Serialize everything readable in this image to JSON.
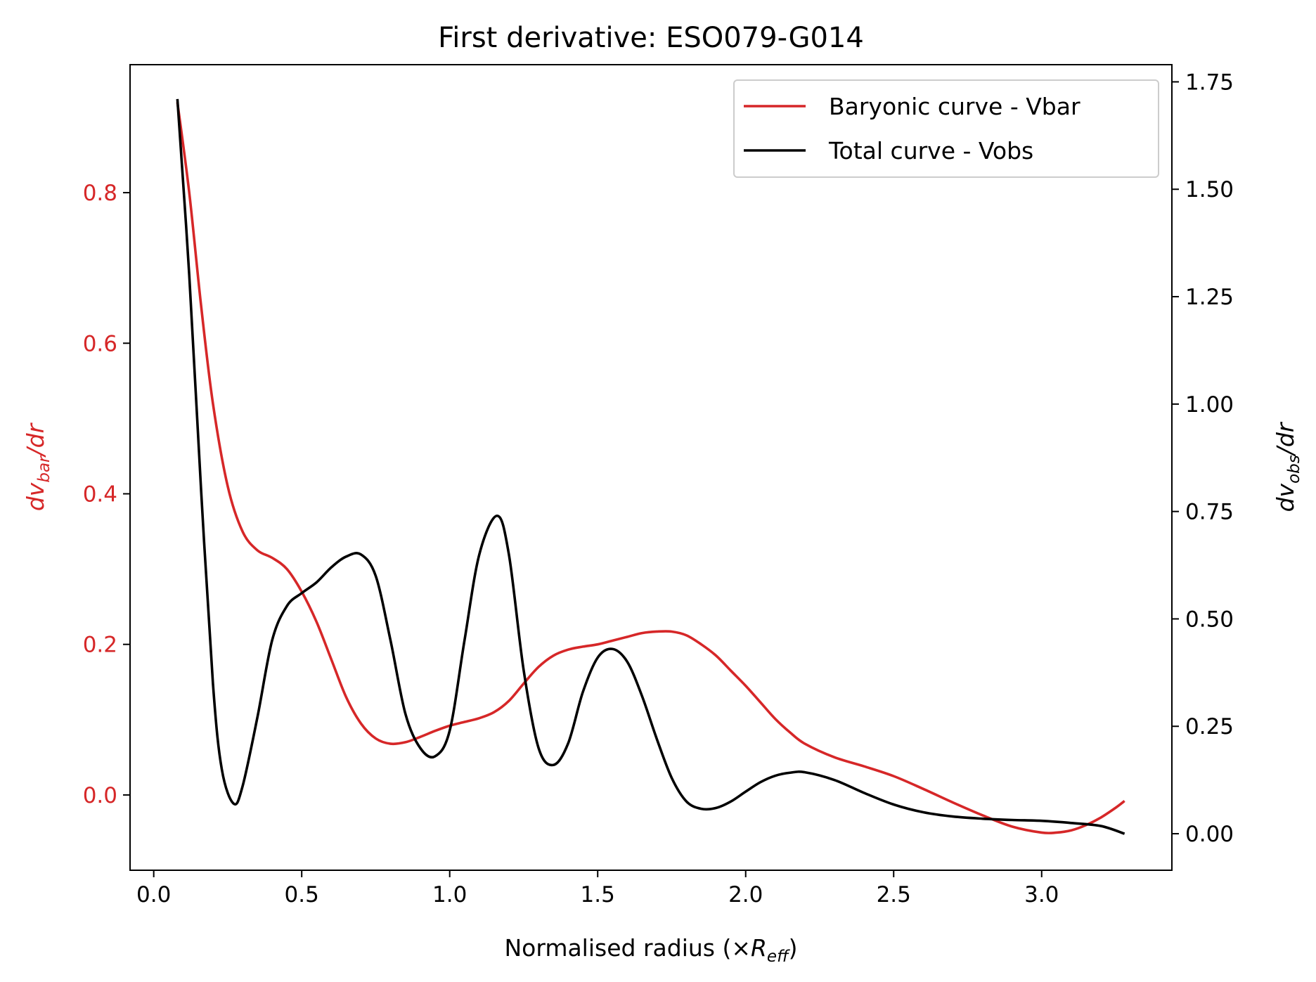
{
  "chart_data": {
    "type": "line",
    "title": "First derivative: ESO079-G014",
    "xlabel": "Normalised radius (×R",
    "xlabel_sub": "eff",
    "xlabel_end": ")",
    "ylabel_left": {
      "pre": "dv",
      "sub": "bar",
      "post": "/dr"
    },
    "ylabel_right": {
      "pre": "dv",
      "sub": "obs",
      "post": "/dr"
    },
    "xlim": [
      -0.08,
      3.44
    ],
    "ylim_left": [
      -0.1,
      0.97
    ],
    "ylim_right": [
      -0.085,
      1.79
    ],
    "x_ticks": [
      0.0,
      0.5,
      1.0,
      1.5,
      2.0,
      2.5,
      3.0
    ],
    "x_tick_labels": [
      "0.0",
      "0.5",
      "1.0",
      "1.5",
      "2.0",
      "2.5",
      "3.0"
    ],
    "y_left_ticks": [
      0.0,
      0.2,
      0.4,
      0.6,
      0.8
    ],
    "y_left_tick_labels": [
      "0.0",
      "0.2",
      "0.4",
      "0.6",
      "0.8"
    ],
    "y_right_ticks": [
      0.0,
      0.25,
      0.5,
      0.75,
      1.0,
      1.25,
      1.5,
      1.75
    ],
    "y_right_tick_labels": [
      "0.00",
      "0.25",
      "0.50",
      "0.75",
      "1.00",
      "1.25",
      "1.50",
      "1.75"
    ],
    "legend_position": "top-right",
    "grid": false,
    "colors": {
      "baryonic": "#d62728",
      "total": "#000000",
      "left_axis": "#d62728",
      "right_axis": "#000000"
    },
    "series": [
      {
        "name": "Baryonic curve - Vbar",
        "axis": "left",
        "x": [
          0.08,
          0.12,
          0.16,
          0.2,
          0.25,
          0.3,
          0.35,
          0.4,
          0.45,
          0.5,
          0.55,
          0.6,
          0.65,
          0.7,
          0.75,
          0.8,
          0.85,
          0.9,
          0.95,
          1.0,
          1.05,
          1.1,
          1.15,
          1.2,
          1.25,
          1.3,
          1.35,
          1.4,
          1.45,
          1.5,
          1.55,
          1.6,
          1.65,
          1.7,
          1.75,
          1.8,
          1.85,
          1.9,
          1.95,
          2.0,
          2.05,
          2.1,
          2.15,
          2.2,
          2.3,
          2.4,
          2.5,
          2.6,
          2.7,
          2.8,
          2.9,
          3.0,
          3.05,
          3.1,
          3.15,
          3.2,
          3.25,
          3.28
        ],
        "y": [
          0.92,
          0.8,
          0.65,
          0.52,
          0.41,
          0.35,
          0.325,
          0.315,
          0.3,
          0.27,
          0.23,
          0.18,
          0.13,
          0.095,
          0.075,
          0.068,
          0.07,
          0.077,
          0.085,
          0.092,
          0.097,
          0.102,
          0.11,
          0.125,
          0.148,
          0.17,
          0.185,
          0.193,
          0.197,
          0.2,
          0.205,
          0.21,
          0.215,
          0.217,
          0.217,
          0.212,
          0.2,
          0.185,
          0.165,
          0.145,
          0.123,
          0.101,
          0.083,
          0.068,
          0.05,
          0.038,
          0.025,
          0.008,
          -0.01,
          -0.027,
          -0.042,
          -0.05,
          -0.05,
          -0.047,
          -0.04,
          -0.03,
          -0.017,
          -0.008
        ]
      },
      {
        "name": "Total curve - Vobs",
        "axis": "right",
        "x": [
          0.08,
          0.12,
          0.16,
          0.2,
          0.23,
          0.27,
          0.3,
          0.35,
          0.4,
          0.45,
          0.5,
          0.55,
          0.6,
          0.65,
          0.7,
          0.75,
          0.8,
          0.85,
          0.9,
          0.95,
          1.0,
          1.05,
          1.1,
          1.16,
          1.2,
          1.25,
          1.3,
          1.35,
          1.4,
          1.45,
          1.5,
          1.55,
          1.6,
          1.65,
          1.7,
          1.75,
          1.8,
          1.85,
          1.9,
          1.95,
          2.0,
          2.05,
          2.1,
          2.15,
          2.2,
          2.3,
          2.4,
          2.5,
          2.6,
          2.7,
          2.8,
          2.9,
          3.0,
          3.1,
          3.2,
          3.28
        ],
        "y": [
          1.71,
          1.3,
          0.8,
          0.35,
          0.15,
          0.07,
          0.11,
          0.27,
          0.45,
          0.53,
          0.56,
          0.585,
          0.62,
          0.645,
          0.65,
          0.6,
          0.45,
          0.28,
          0.2,
          0.18,
          0.24,
          0.45,
          0.65,
          0.74,
          0.65,
          0.38,
          0.2,
          0.16,
          0.21,
          0.33,
          0.41,
          0.43,
          0.4,
          0.32,
          0.22,
          0.13,
          0.075,
          0.058,
          0.06,
          0.075,
          0.098,
          0.12,
          0.135,
          0.142,
          0.143,
          0.125,
          0.095,
          0.068,
          0.05,
          0.04,
          0.035,
          0.032,
          0.03,
          0.025,
          0.018,
          0.0
        ]
      }
    ]
  }
}
